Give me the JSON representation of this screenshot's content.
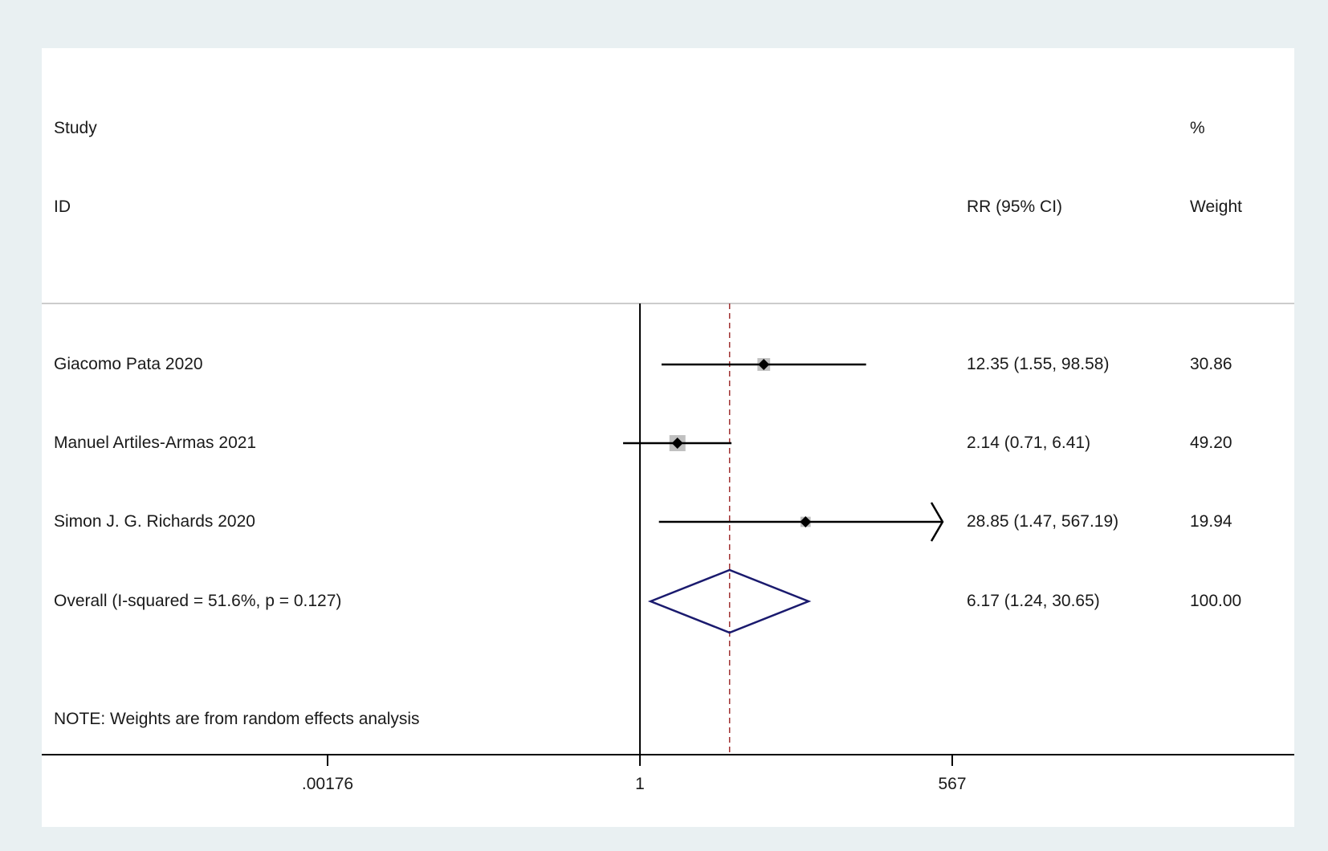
{
  "chart_data": {
    "type": "forest",
    "headers": {
      "study_top": "Study",
      "study_bottom": "ID",
      "effect": "RR (95% CI)",
      "weight_top": "%",
      "weight_bottom": "Weight"
    },
    "studies": [
      {
        "label": "Giacomo Pata 2020",
        "rr": 12.35,
        "lo": 1.55,
        "hi": 98.58,
        "effect_text": "12.35 (1.55, 98.58)",
        "weight": "30.86",
        "weight_value": 30.86
      },
      {
        "label": "Manuel Artiles-Armas 2021",
        "rr": 2.14,
        "lo": 0.71,
        "hi": 6.41,
        "effect_text": "2.14 (0.71, 6.41)",
        "weight": "49.20",
        "weight_value": 49.2
      },
      {
        "label": "Simon J. G. Richards 2020",
        "rr": 28.85,
        "lo": 1.47,
        "hi": 567.19,
        "effect_text": "28.85 (1.47, 567.19)",
        "weight": "19.94",
        "weight_value": 19.94,
        "arrow_right": true
      }
    ],
    "overall": {
      "label": "Overall  (I-squared = 51.6%, p = 0.127)",
      "rr": 6.17,
      "lo": 1.24,
      "hi": 30.65,
      "effect_text": "6.17 (1.24, 30.65)",
      "weight": "100.00"
    },
    "note": "NOTE: Weights are from random effects analysis",
    "x_axis": {
      "scale": "log",
      "ticks": [
        0.00176,
        1,
        567
      ],
      "tick_labels": [
        ".00176",
        "1",
        "567"
      ],
      "range": [
        0.00176,
        567
      ]
    },
    "reference_line": 1,
    "colors": {
      "line": "#000000",
      "box": "#c0c0c0",
      "diamond": "#1a1a6e",
      "overall_line": "#a03030",
      "separator": "#cccccc",
      "background": "#e9f0f2"
    }
  }
}
